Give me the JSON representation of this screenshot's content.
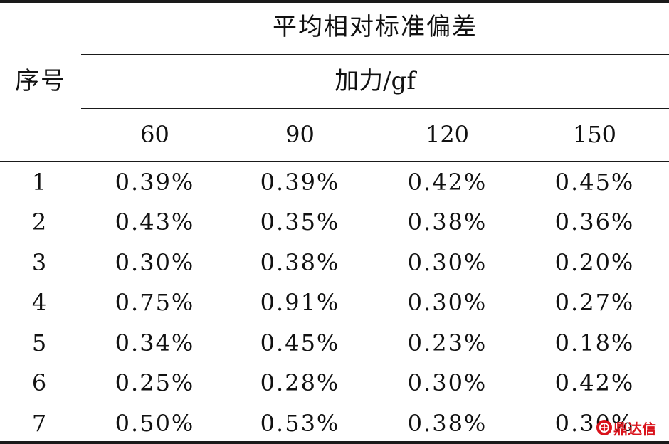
{
  "table": {
    "title": "平均相对标准偏差",
    "seq_header": "序号",
    "load_header": "加力/gf",
    "columns": [
      "60",
      "90",
      "120",
      "150"
    ],
    "rows": [
      {
        "seq": "1",
        "values": [
          "0.39%",
          "0.39%",
          "0.42%",
          "0.45%"
        ]
      },
      {
        "seq": "2",
        "values": [
          "0.43%",
          "0.35%",
          "0.38%",
          "0.36%"
        ]
      },
      {
        "seq": "3",
        "values": [
          "0.30%",
          "0.38%",
          "0.30%",
          "0.20%"
        ]
      },
      {
        "seq": "4",
        "values": [
          "0.75%",
          "0.91%",
          "0.30%",
          "0.27%"
        ]
      },
      {
        "seq": "5",
        "values": [
          "0.34%",
          "0.45%",
          "0.23%",
          "0.18%"
        ]
      },
      {
        "seq": "6",
        "values": [
          "0.25%",
          "0.28%",
          "0.30%",
          "0.42%"
        ]
      },
      {
        "seq": "7",
        "values": [
          "0.50%",
          "0.53%",
          "0.38%",
          "0.30%"
        ]
      }
    ]
  },
  "watermark": {
    "text": "鼎达信",
    "color": "#d9121b"
  }
}
